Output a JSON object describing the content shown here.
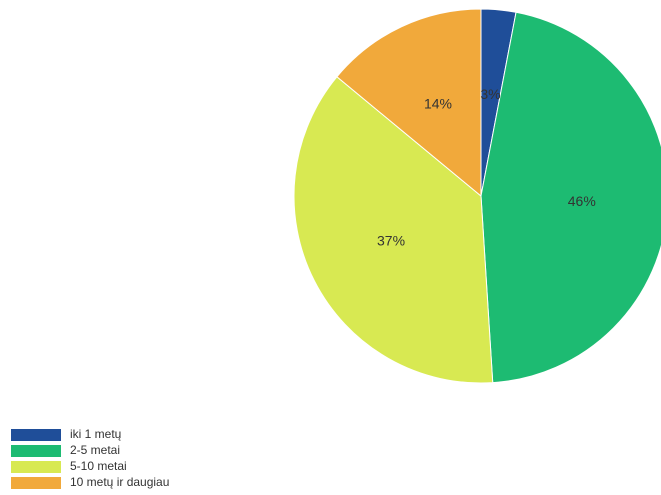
{
  "chart_data": {
    "type": "pie",
    "title": "",
    "slices": [
      {
        "label": "iki 1 metų",
        "value": 3,
        "display": "3%",
        "color": "#1f4e99"
      },
      {
        "label": "2-5 metai",
        "value": 46,
        "display": "46%",
        "color": "#1dbb72"
      },
      {
        "label": "5-10 metai",
        "value": 37,
        "display": "37%",
        "color": "#d8e952"
      },
      {
        "label": "10 metų ir daugiau",
        "value": 14,
        "display": "14%",
        "color": "#f1a93b"
      }
    ],
    "start_angle": "top, clockwise",
    "legend_position": "bottom-left"
  }
}
